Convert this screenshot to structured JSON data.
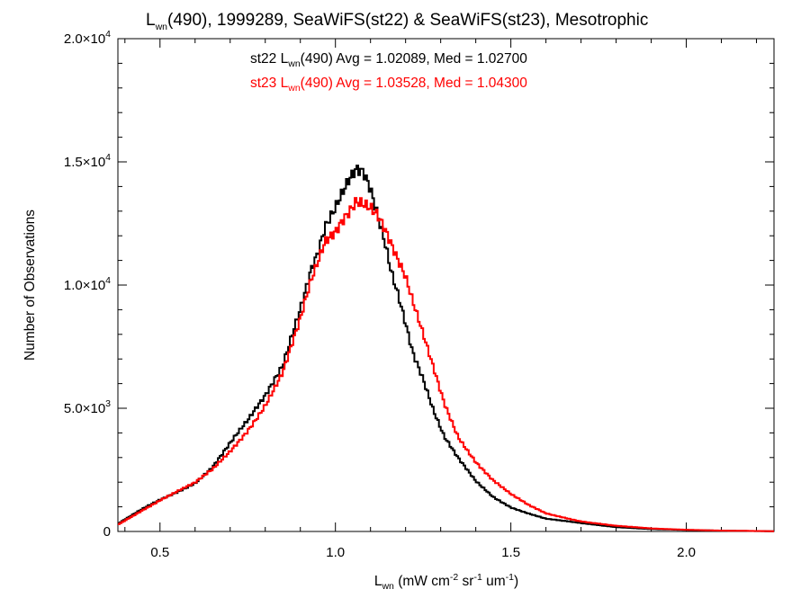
{
  "chart_data": {
    "type": "histogram",
    "title": {
      "main": "L",
      "sub": "wn",
      "rest": "(490), 1999289, SeaWiFS(st22) & SeaWiFS(st23), Mesotrophic"
    },
    "xlabel": {
      "main": "L",
      "sub": "wn",
      "rest1": " (mW cm",
      "sup1": "-2",
      "rest2": " sr",
      "sup2": "-1",
      "rest3": " um",
      "sup3": "-1",
      "rest4": ")"
    },
    "ylabel": "Number of Observations",
    "xlim": [
      0.38,
      2.25
    ],
    "ylim": [
      0,
      20000
    ],
    "x_ticks": [
      {
        "value": 0.5,
        "label": "0.5"
      },
      {
        "value": 1.0,
        "label": "1.0"
      },
      {
        "value": 1.5,
        "label": "1.5"
      },
      {
        "value": 2.0,
        "label": "2.0"
      }
    ],
    "y_ticks": [
      {
        "value": 0,
        "mantissa": "0",
        "exp": ""
      },
      {
        "value": 5000,
        "mantissa": "5.0×10",
        "exp": "3"
      },
      {
        "value": 10000,
        "mantissa": "1.0×10",
        "exp": "4"
      },
      {
        "value": 15000,
        "mantissa": "1.5×10",
        "exp": "4"
      },
      {
        "value": 20000,
        "mantissa": "2.0×10",
        "exp": "4"
      }
    ],
    "legend": [
      {
        "prefix": "st22 L",
        "sub": "wn",
        "suffix": "(490) Avg = 1.02089, Med = 1.02700",
        "color": "#000000"
      },
      {
        "prefix": "st23 L",
        "sub": "wn",
        "suffix": "(490) Avg = 1.03528, Med = 1.04300",
        "color": "#ff0000"
      }
    ],
    "series": [
      {
        "name": "st22",
        "color": "#000000",
        "points": [
          [
            0.38,
            300
          ],
          [
            0.45,
            900
          ],
          [
            0.5,
            1300
          ],
          [
            0.55,
            1650
          ],
          [
            0.6,
            2000
          ],
          [
            0.65,
            2600
          ],
          [
            0.7,
            3500
          ],
          [
            0.75,
            4400
          ],
          [
            0.8,
            5500
          ],
          [
            0.85,
            6900
          ],
          [
            0.88,
            8400
          ],
          [
            0.9,
            9300
          ],
          [
            0.93,
            10800
          ],
          [
            0.95,
            11400
          ],
          [
            0.97,
            12300
          ],
          [
            1.0,
            12900
          ],
          [
            1.02,
            13400
          ],
          [
            1.04,
            13900
          ],
          [
            1.06,
            14300
          ],
          [
            1.08,
            14250
          ],
          [
            1.1,
            13700
          ],
          [
            1.12,
            12800
          ],
          [
            1.14,
            11900
          ],
          [
            1.16,
            10700
          ],
          [
            1.18,
            9800
          ],
          [
            1.2,
            8700
          ],
          [
            1.22,
            7500
          ],
          [
            1.25,
            6300
          ],
          [
            1.28,
            4900
          ],
          [
            1.31,
            3800
          ],
          [
            1.35,
            2900
          ],
          [
            1.4,
            2000
          ],
          [
            1.45,
            1400
          ],
          [
            1.5,
            1000
          ],
          [
            1.55,
            750
          ],
          [
            1.6,
            520
          ],
          [
            1.7,
            330
          ],
          [
            1.8,
            180
          ],
          [
            1.9,
            100
          ],
          [
            2.0,
            60
          ],
          [
            2.1,
            30
          ],
          [
            2.25,
            10
          ]
        ]
      },
      {
        "name": "st23",
        "color": "#ff0000",
        "points": [
          [
            0.38,
            280
          ],
          [
            0.45,
            880
          ],
          [
            0.5,
            1270
          ],
          [
            0.55,
            1600
          ],
          [
            0.6,
            1930
          ],
          [
            0.65,
            2500
          ],
          [
            0.7,
            3300
          ],
          [
            0.75,
            4200
          ],
          [
            0.8,
            5200
          ],
          [
            0.85,
            6400
          ],
          [
            0.88,
            7600
          ],
          [
            0.9,
            8400
          ],
          [
            0.93,
            9900
          ],
          [
            0.95,
            10700
          ],
          [
            0.97,
            11600
          ],
          [
            1.0,
            12200
          ],
          [
            1.02,
            12800
          ],
          [
            1.04,
            13300
          ],
          [
            1.06,
            13800
          ],
          [
            1.08,
            13700
          ],
          [
            1.1,
            13500
          ],
          [
            1.12,
            13100
          ],
          [
            1.14,
            12400
          ],
          [
            1.16,
            11600
          ],
          [
            1.18,
            10800
          ],
          [
            1.2,
            10100
          ],
          [
            1.22,
            9100
          ],
          [
            1.25,
            7800
          ],
          [
            1.28,
            6500
          ],
          [
            1.31,
            5200
          ],
          [
            1.35,
            3900
          ],
          [
            1.4,
            2900
          ],
          [
            1.45,
            2100
          ],
          [
            1.5,
            1500
          ],
          [
            1.55,
            1050
          ],
          [
            1.6,
            720
          ],
          [
            1.7,
            420
          ],
          [
            1.8,
            230
          ],
          [
            1.9,
            120
          ],
          [
            2.0,
            70
          ],
          [
            2.1,
            35
          ],
          [
            2.25,
            10
          ]
        ]
      }
    ]
  }
}
